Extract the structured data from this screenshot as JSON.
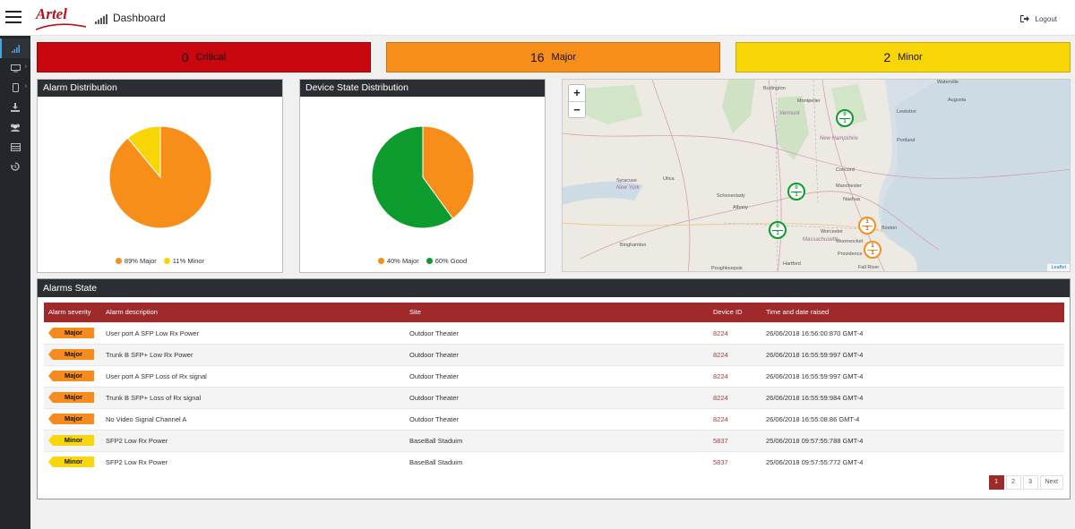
{
  "header": {
    "brand": "Artel",
    "title": "Dashboard",
    "logout": "Logout"
  },
  "colors": {
    "critical": "#c8070f",
    "major": "#f88e1a",
    "minor": "#f8d507",
    "good": "#0d9b2d",
    "header_dark": "#2b2f34",
    "table_header": "#9e2a2b"
  },
  "sidebar": {
    "items": [
      {
        "icon": "signal-bars-icon",
        "active": true
      },
      {
        "icon": "monitor-icon",
        "expandable": true
      },
      {
        "icon": "device-icon",
        "expandable": true
      },
      {
        "icon": "download-icon"
      },
      {
        "icon": "users-icon"
      },
      {
        "icon": "table-icon"
      },
      {
        "icon": "history-icon"
      }
    ]
  },
  "severity": {
    "critical": {
      "count": "0",
      "label": "Critical"
    },
    "major": {
      "count": "16",
      "label": "Major"
    },
    "minor": {
      "count": "2",
      "label": "Minor"
    }
  },
  "alarm_distribution": {
    "title": "Alarm Distribution",
    "legend": [
      {
        "label": "89% Major",
        "color": "#f88e1a"
      },
      {
        "label": "11% Minor",
        "color": "#f8d507"
      }
    ]
  },
  "device_state": {
    "title": "Device State Distribution",
    "legend": [
      {
        "label": "40% Major",
        "color": "#f88e1a"
      },
      {
        "label": "60% Good",
        "color": "#0d9b2d"
      }
    ]
  },
  "chart_data": [
    {
      "type": "pie",
      "title": "Alarm Distribution",
      "categories": [
        "Major",
        "Minor"
      ],
      "values": [
        89,
        11
      ],
      "colors": [
        "#f88e1a",
        "#f8d507"
      ],
      "legend": "bottom"
    },
    {
      "type": "pie",
      "title": "Device State Distribution",
      "categories": [
        "Major",
        "Good"
      ],
      "values": [
        40,
        60
      ],
      "colors": [
        "#f88e1a",
        "#0d9b2d"
      ],
      "legend": "bottom"
    }
  ],
  "map": {
    "zoom_in": "+",
    "zoom_out": "−",
    "attribution": "Leaflet",
    "labels": [
      "Burlington",
      "Montpelier",
      "Vermont",
      "New Hampshire",
      "Waterville",
      "Augusta",
      "Lewiston",
      "Portland",
      "Concord",
      "Manchester",
      "Nashua",
      "Syracuse",
      "New York",
      "Utica",
      "Schenectady",
      "Albany",
      "Binghamton",
      "Worcester",
      "Massachusetts",
      "Boston",
      "Providence",
      "Woonsocket",
      "Hartford",
      "Fall River",
      "Poughkeepsie"
    ],
    "markers": [
      {
        "top": "0",
        "bottom": "1",
        "status": "good"
      },
      {
        "top": "0",
        "bottom": "1",
        "status": "good"
      },
      {
        "top": "0",
        "bottom": "1",
        "status": "good"
      },
      {
        "top": "1",
        "bottom": "1",
        "status": "major"
      },
      {
        "top": "1",
        "bottom": "1",
        "status": "major"
      }
    ]
  },
  "alarms": {
    "title": "Alarms State",
    "columns": [
      "Alarm severity",
      "Alarm description",
      "Site",
      "Device ID",
      "Time and date raised"
    ],
    "rows": [
      {
        "severity": "Major",
        "description": "User port A SFP Low Rx Power",
        "site": "Outdoor Theater",
        "device_id": "8224",
        "time": "26/06/2018 16:56:00:870 GMT-4"
      },
      {
        "severity": "Major",
        "description": "Trunk B SFP+ Low Rx Power",
        "site": "Outdoor Theater",
        "device_id": "8224",
        "time": "26/06/2018 16:55:59:997 GMT-4"
      },
      {
        "severity": "Major",
        "description": "User port A SFP Loss of Rx signal",
        "site": "Outdoor Theater",
        "device_id": "8224",
        "time": "26/06/2018 16:55:59:997 GMT-4"
      },
      {
        "severity": "Major",
        "description": "Trunk B SFP+ Loss of Rx signal",
        "site": "Outdoor Theater",
        "device_id": "8224",
        "time": "26/06/2018 16:55:59:984 GMT-4"
      },
      {
        "severity": "Major",
        "description": "No Video Signal Channel A",
        "site": "Outdoor Theater",
        "device_id": "8224",
        "time": "26/06/2018 16:55:08:86 GMT-4"
      },
      {
        "severity": "Minor",
        "description": "SFP2 Low Rx Power",
        "site": "BaseBall Staduim",
        "device_id": "5837",
        "time": "25/06/2018 09:57:55:788 GMT-4"
      },
      {
        "severity": "Minor",
        "description": "SFP2 Low Rx Power",
        "site": "BaseBall Staduim",
        "device_id": "5837",
        "time": "25/06/2018 09:57:55:772 GMT-4"
      }
    ]
  },
  "pagination": {
    "pages": [
      "1",
      "2",
      "3"
    ],
    "current": "1",
    "next": "Next"
  }
}
